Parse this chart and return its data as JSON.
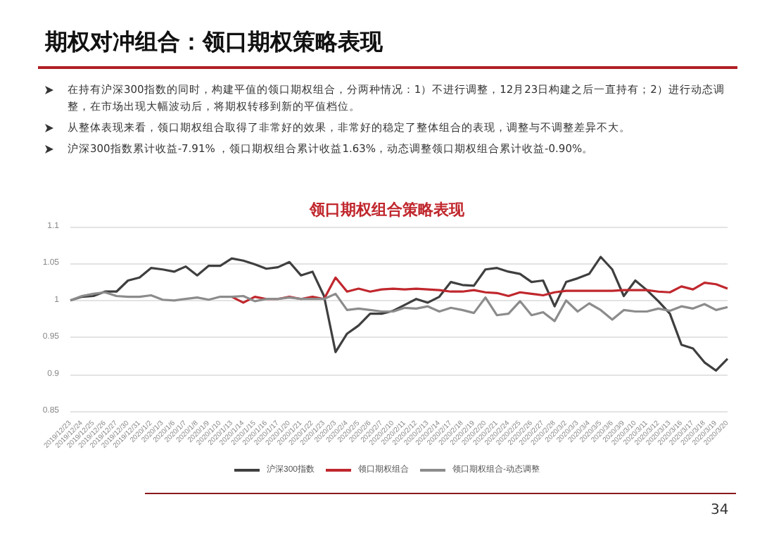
{
  "chart_data": {
    "type": "line",
    "title": "期权对冲组合：领口期权策略表现",
    "subtitle": "领口期权组合策略表现",
    "annotations": [
      "在持有沪深300指数的同时，构建平值的领口期权组合，分两种情况：1）不进行调整，12月23日构建之后一直持有；2）进行动态调整，在市场出现大幅波动后，将期权转移到新的平值档位。",
      "从整体表现来看，领口期权组合取得了非常好的效果，非常好的稳定了整体组合的表现，调整与不调整差异不大。",
      "沪深300指数累计收益-7.91% ，领口期权组合累计收益1.63%，动态调整领口期权组合累计收益-0.90%。",
      "34"
    ],
    "categories": [
      "2019/12/23",
      "2019/12/24",
      "2019/12/25",
      "2019/12/26",
      "2019/12/27",
      "2019/12/30",
      "2019/12/31",
      "2020/1/2",
      "2020/1/3",
      "2020/1/6",
      "2020/1/7",
      "2020/1/8",
      "2020/1/9",
      "2020/1/10",
      "2020/1/13",
      "2020/1/14",
      "2020/1/15",
      "2020/1/16",
      "2020/1/17",
      "2020/1/20",
      "2020/1/21",
      "2020/1/22",
      "2020/1/23",
      "2020/2/3",
      "2020/2/4",
      "2020/2/5",
      "2020/2/6",
      "2020/2/7",
      "2020/2/10",
      "2020/2/11",
      "2020/2/12",
      "2020/2/13",
      "2020/2/14",
      "2020/2/17",
      "2020/2/18",
      "2020/2/19",
      "2020/2/20",
      "2020/2/21",
      "2020/2/24",
      "2020/2/25",
      "2020/2/26",
      "2020/2/27",
      "2020/2/28",
      "2020/3/2",
      "2020/3/3",
      "2020/3/4",
      "2020/3/5",
      "2020/3/6",
      "2020/3/9",
      "2020/3/10",
      "2020/3/11",
      "2020/3/12",
      "2020/3/13",
      "2020/3/16",
      "2020/3/17",
      "2020/3/18",
      "2020/3/19",
      "2020/3/20"
    ],
    "series": [
      {
        "name": "沪深300指数",
        "color": "#3f3f3f",
        "values": [
          1.0,
          1.005,
          1.006,
          1.012,
          1.012,
          1.027,
          1.031,
          1.044,
          1.042,
          1.039,
          1.046,
          1.034,
          1.047,
          1.047,
          1.057,
          1.054,
          1.049,
          1.043,
          1.045,
          1.052,
          1.034,
          1.039,
          1.006,
          0.93,
          0.955,
          0.966,
          0.982,
          0.982,
          0.986,
          0.994,
          1.002,
          0.997,
          1.005,
          1.025,
          1.021,
          1.02,
          1.042,
          1.044,
          1.039,
          1.036,
          1.025,
          1.027,
          0.992,
          1.025,
          1.03,
          1.036,
          1.059,
          1.042,
          1.006,
          1.027,
          1.014,
          0.999,
          0.982,
          0.94,
          0.935,
          0.916,
          0.905,
          0.921
        ]
      },
      {
        "name": "领口期权组合",
        "color": "#c0272d",
        "values": [
          null,
          null,
          null,
          null,
          null,
          null,
          null,
          null,
          null,
          null,
          null,
          null,
          null,
          null,
          1.005,
          0.997,
          1.005,
          1.002,
          1.002,
          1.005,
          1.002,
          1.005,
          1.002,
          1.031,
          1.012,
          1.016,
          1.012,
          1.015,
          1.016,
          1.015,
          1.016,
          1.015,
          1.014,
          1.012,
          1.012,
          1.014,
          1.011,
          1.01,
          1.006,
          1.011,
          1.009,
          1.007,
          1.011,
          1.013,
          1.013,
          1.013,
          1.013,
          1.013,
          1.014,
          1.014,
          1.014,
          1.012,
          1.011,
          1.019,
          1.015,
          1.024,
          1.022,
          1.016
        ]
      },
      {
        "name": "领口期权组合-动态调整",
        "color": "#8c8c8c",
        "values": [
          1.0,
          1.006,
          1.009,
          1.011,
          1.006,
          1.005,
          1.005,
          1.007,
          1.001,
          1.0,
          1.002,
          1.004,
          1.001,
          1.005,
          1.005,
          1.006,
          0.999,
          1.002,
          1.002,
          1.004,
          1.002,
          1.002,
          1.002,
          1.009,
          0.987,
          0.989,
          0.987,
          0.985,
          0.985,
          0.99,
          0.989,
          0.992,
          0.985,
          0.99,
          0.987,
          0.983,
          1.004,
          0.98,
          0.982,
          0.999,
          0.98,
          0.984,
          0.972,
          1.0,
          0.985,
          0.996,
          0.987,
          0.974,
          0.987,
          0.985,
          0.985,
          0.989,
          0.986,
          0.992,
          0.989,
          0.995,
          0.987,
          0.991
        ]
      }
    ],
    "ylim": [
      0.85,
      1.1
    ],
    "yticks": [
      0.85,
      0.9,
      0.95,
      1,
      1.05,
      1.1
    ],
    "grid": "y",
    "legend": "bottom",
    "marker": "none",
    "line_style": "solid"
  }
}
